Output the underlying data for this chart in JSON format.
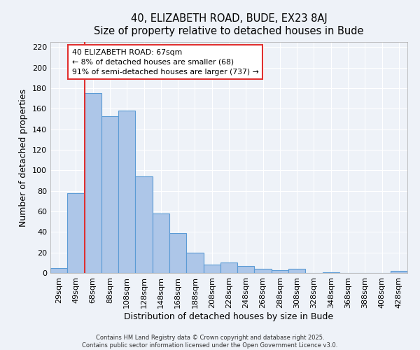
{
  "title": "40, ELIZABETH ROAD, BUDE, EX23 8AJ",
  "subtitle": "Size of property relative to detached houses in Bude",
  "xlabel": "Distribution of detached houses by size in Bude",
  "ylabel": "Number of detached properties",
  "bin_labels": [
    "29sqm",
    "49sqm",
    "68sqm",
    "88sqm",
    "108sqm",
    "128sqm",
    "148sqm",
    "168sqm",
    "188sqm",
    "208sqm",
    "228sqm",
    "248sqm",
    "268sqm",
    "288sqm",
    "308sqm",
    "328sqm",
    "348sqm",
    "368sqm",
    "388sqm",
    "408sqm",
    "428sqm"
  ],
  "bar_heights": [
    5,
    78,
    175,
    153,
    158,
    94,
    58,
    39,
    20,
    8,
    10,
    7,
    4,
    3,
    4,
    0,
    1,
    0,
    0,
    0,
    2
  ],
  "bar_color": "#adc6e8",
  "bar_edge_color": "#5b9bd5",
  "vline_color": "#e03030",
  "annotation_box_text": "40 ELIZABETH ROAD: 67sqm\n← 8% of detached houses are smaller (68)\n91% of semi-detached houses are larger (737) →",
  "ylim": [
    0,
    225
  ],
  "yticks": [
    0,
    20,
    40,
    60,
    80,
    100,
    120,
    140,
    160,
    180,
    200,
    220
  ],
  "footer_line1": "Contains HM Land Registry data © Crown copyright and database right 2025.",
  "footer_line2": "Contains public sector information licensed under the Open Government Licence v3.0.",
  "background_color": "#eef2f8",
  "grid_color": "#ffffff"
}
